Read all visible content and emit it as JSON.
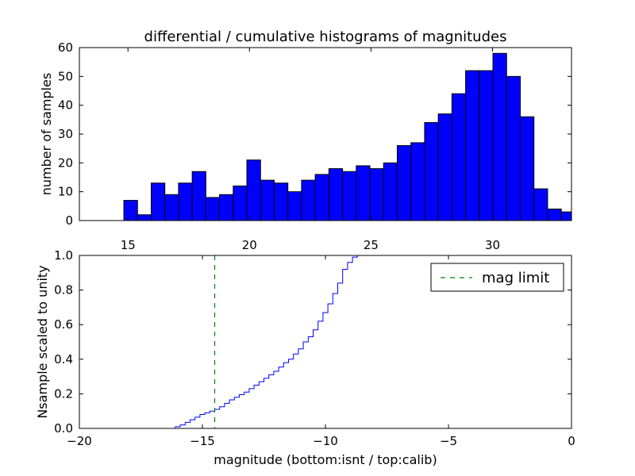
{
  "chart_data": [
    {
      "type": "bar",
      "title": "differential / cumulative histograms of magnitudes",
      "xlabel": "",
      "ylabel": "number of samples",
      "xlim": [
        13.0,
        33.25
      ],
      "ylim": [
        0,
        60
      ],
      "x_ticks_top": [
        "15",
        "20",
        "25",
        "30"
      ],
      "x_tick_values": [
        15,
        20,
        25,
        30
      ],
      "y_ticks": [
        "0",
        "10",
        "20",
        "30",
        "40",
        "50",
        "60"
      ],
      "y_tick_values": [
        0,
        10,
        20,
        30,
        40,
        50,
        60
      ],
      "bin_width": 0.5625,
      "bin_start": 14.83,
      "values": [
        7,
        2,
        13,
        9,
        13,
        17,
        8,
        9,
        12,
        21,
        14,
        13,
        10,
        14,
        16,
        18,
        17,
        19,
        18,
        20,
        26,
        27,
        34,
        37,
        44,
        52,
        52,
        58,
        50,
        36,
        11,
        4,
        3
      ],
      "bar_color": "#0000ff",
      "grid": false
    },
    {
      "type": "line",
      "title": "",
      "xlabel": "magnitude (bottom:isnt / top:calib)",
      "ylabel": "Nsample scaled to unity",
      "xlim": [
        -20,
        0
      ],
      "ylim": [
        0,
        1.0
      ],
      "x_ticks": [
        "−20",
        "−15",
        "−10",
        "−5",
        "0"
      ],
      "x_tick_values": [
        -20,
        -15,
        -10,
        -5,
        0
      ],
      "y_ticks": [
        "0.0",
        "0.2",
        "0.4",
        "0.6",
        "0.8",
        "1.0"
      ],
      "y_tick_values": [
        0,
        0.2,
        0.4,
        0.6,
        0.8,
        1.0
      ],
      "series": [
        {
          "step": true,
          "color": "#0000ff",
          "x": [
            -20,
            -16.3,
            -16.1,
            -15.9,
            -15.7,
            -15.5,
            -15.3,
            -15.1,
            -14.9,
            -14.7,
            -14.5,
            -14.3,
            -14.1,
            -13.9,
            -13.7,
            -13.5,
            -13.3,
            -13.1,
            -12.9,
            -12.7,
            -12.5,
            -12.3,
            -12.1,
            -11.9,
            -11.7,
            -11.5,
            -11.3,
            -11.1,
            -10.9,
            -10.7,
            -10.5,
            -10.3,
            -10.1,
            -9.9,
            -9.7,
            -9.5,
            -9.3,
            -9.1,
            -8.9,
            -8.7,
            -8.5,
            -8.3,
            0
          ],
          "y": [
            0.0,
            0.0,
            0.01,
            0.02,
            0.035,
            0.05,
            0.065,
            0.08,
            0.09,
            0.1,
            0.11,
            0.125,
            0.145,
            0.165,
            0.18,
            0.195,
            0.21,
            0.23,
            0.25,
            0.27,
            0.29,
            0.31,
            0.33,
            0.355,
            0.38,
            0.4,
            0.43,
            0.46,
            0.5,
            0.53,
            0.57,
            0.62,
            0.67,
            0.72,
            0.78,
            0.84,
            0.92,
            0.96,
            0.99,
            1.0,
            1.0,
            1.0,
            1.0
          ]
        },
        {
          "name": "mag limit",
          "color": "#008000",
          "dashed": true,
          "x_value": -14.5
        }
      ],
      "legend": "top-right",
      "grid": false
    }
  ]
}
